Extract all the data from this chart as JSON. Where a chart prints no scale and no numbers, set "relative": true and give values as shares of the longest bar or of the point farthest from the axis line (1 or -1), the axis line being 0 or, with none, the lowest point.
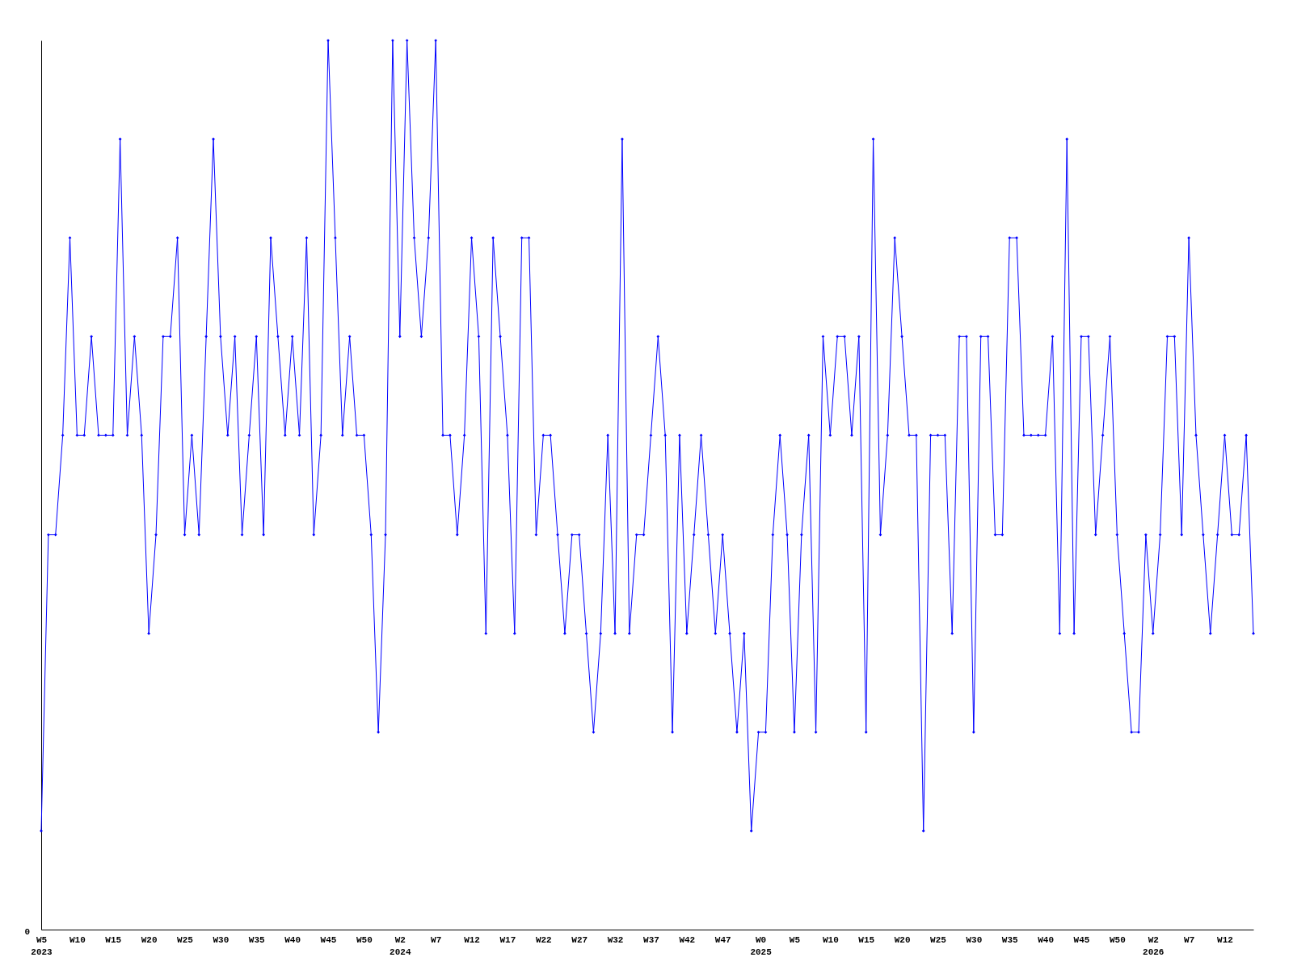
{
  "chart_data": {
    "type": "line",
    "relative": true,
    "marker": "diamond",
    "line_style": "solid",
    "grid": false,
    "annotations": [
      "0"
    ],
    "xlim": [
      "2023-01-30",
      "2026-04-27"
    ],
    "xticks": [
      {
        "value": "2023-01-30",
        "label": "W5\n2023"
      },
      {
        "value": "2023-03-06",
        "label": "W10"
      },
      {
        "value": "2023-04-10",
        "label": "W15"
      },
      {
        "value": "2023-05-15",
        "label": "W20"
      },
      {
        "value": "2023-06-19",
        "label": "W25"
      },
      {
        "value": "2023-07-24",
        "label": "W30"
      },
      {
        "value": "2023-08-28",
        "label": "W35"
      },
      {
        "value": "2023-10-02",
        "label": "W40"
      },
      {
        "value": "2023-11-06",
        "label": "W45"
      },
      {
        "value": "2023-12-11",
        "label": "W50"
      },
      {
        "value": "2024-01-15",
        "label": "W2\n2024"
      },
      {
        "value": "2024-02-19",
        "label": "W7"
      },
      {
        "value": "2024-03-25",
        "label": "W12"
      },
      {
        "value": "2024-04-29",
        "label": "W17"
      },
      {
        "value": "2024-06-03",
        "label": "W22"
      },
      {
        "value": "2024-07-08",
        "label": "W27"
      },
      {
        "value": "2024-08-12",
        "label": "W32"
      },
      {
        "value": "2024-09-16",
        "label": "W37"
      },
      {
        "value": "2024-10-21",
        "label": "W42"
      },
      {
        "value": "2024-11-25",
        "label": "W47"
      },
      {
        "value": "2025-01-01",
        "label": "W0\n2025"
      },
      {
        "value": "2025-02-03",
        "label": "W5"
      },
      {
        "value": "2025-03-10",
        "label": "W10"
      },
      {
        "value": "2025-04-14",
        "label": "W15"
      },
      {
        "value": "2025-05-19",
        "label": "W20"
      },
      {
        "value": "2025-06-23",
        "label": "W25"
      },
      {
        "value": "2025-07-28",
        "label": "W30"
      },
      {
        "value": "2025-09-01",
        "label": "W35"
      },
      {
        "value": "2025-10-06",
        "label": "W40"
      },
      {
        "value": "2025-11-10",
        "label": "W45"
      },
      {
        "value": "2025-12-15",
        "label": "W50"
      },
      {
        "value": "2026-01-19",
        "label": "W2\n2026"
      },
      {
        "value": "2026-02-23",
        "label": "W7"
      },
      {
        "value": "2026-03-30",
        "label": "W12"
      }
    ],
    "x": [
      "2023-01-30",
      "2023-02-06",
      "2023-02-13",
      "2023-02-20",
      "2023-02-27",
      "2023-03-06",
      "2023-03-13",
      "2023-03-20",
      "2023-03-27",
      "2023-04-03",
      "2023-04-10",
      "2023-04-17",
      "2023-04-24",
      "2023-05-01",
      "2023-05-08",
      "2023-05-15",
      "2023-05-22",
      "2023-05-29",
      "2023-06-05",
      "2023-06-12",
      "2023-06-19",
      "2023-06-26",
      "2023-07-03",
      "2023-07-10",
      "2023-07-17",
      "2023-07-24",
      "2023-07-31",
      "2023-08-07",
      "2023-08-14",
      "2023-08-21",
      "2023-08-28",
      "2023-09-04",
      "2023-09-11",
      "2023-09-18",
      "2023-09-25",
      "2023-10-02",
      "2023-10-09",
      "2023-10-16",
      "2023-10-23",
      "2023-10-30",
      "2023-11-06",
      "2023-11-13",
      "2023-11-20",
      "2023-11-27",
      "2023-12-04",
      "2023-12-11",
      "2023-12-18",
      "2023-12-25",
      "2024-01-01",
      "2024-01-08",
      "2024-01-15",
      "2024-01-22",
      "2024-01-29",
      "2024-02-05",
      "2024-02-12",
      "2024-02-19",
      "2024-02-26",
      "2024-03-04",
      "2024-03-11",
      "2024-03-18",
      "2024-03-25",
      "2024-04-01",
      "2024-04-08",
      "2024-04-15",
      "2024-04-22",
      "2024-04-29",
      "2024-05-06",
      "2024-05-13",
      "2024-05-20",
      "2024-05-27",
      "2024-06-03",
      "2024-06-10",
      "2024-06-17",
      "2024-06-24",
      "2024-07-01",
      "2024-07-08",
      "2024-07-15",
      "2024-07-22",
      "2024-07-29",
      "2024-08-05",
      "2024-08-12",
      "2024-08-19",
      "2024-08-26",
      "2024-09-02",
      "2024-09-09",
      "2024-09-16",
      "2024-09-23",
      "2024-09-30",
      "2024-10-07",
      "2024-10-14",
      "2024-10-21",
      "2024-10-28",
      "2024-11-04",
      "2024-11-11",
      "2024-11-18",
      "2024-11-25",
      "2024-12-02",
      "2024-12-09",
      "2024-12-16",
      "2024-12-23",
      "2024-12-30",
      "2025-01-06",
      "2025-01-13",
      "2025-01-20",
      "2025-01-27",
      "2025-02-03",
      "2025-02-10",
      "2025-02-17",
      "2025-02-24",
      "2025-03-03",
      "2025-03-10",
      "2025-03-17",
      "2025-03-24",
      "2025-03-31",
      "2025-04-07",
      "2025-04-14",
      "2025-04-21",
      "2025-04-28",
      "2025-05-05",
      "2025-05-12",
      "2025-05-19",
      "2025-05-26",
      "2025-06-02",
      "2025-06-09",
      "2025-06-16",
      "2025-06-23",
      "2025-06-30",
      "2025-07-07",
      "2025-07-14",
      "2025-07-21",
      "2025-07-28",
      "2025-08-04",
      "2025-08-11",
      "2025-08-18",
      "2025-08-25",
      "2025-09-01",
      "2025-09-08",
      "2025-09-15",
      "2025-09-22",
      "2025-09-29",
      "2025-10-06",
      "2025-10-13",
      "2025-10-20",
      "2025-10-27",
      "2025-11-03",
      "2025-11-10",
      "2025-11-17",
      "2025-11-24",
      "2025-12-01",
      "2025-12-08",
      "2025-12-15",
      "2025-12-22",
      "2025-12-29",
      "2026-01-05",
      "2026-01-12",
      "2026-01-19",
      "2026-01-26",
      "2026-02-02",
      "2026-02-09",
      "2026-02-16",
      "2026-02-23",
      "2026-03-02",
      "2026-03-09",
      "2026-03-16",
      "2026-03-23",
      "2026-03-30",
      "2026-04-06",
      "2026-04-13",
      "2026-04-20",
      "2026-04-27"
    ],
    "series": [
      {
        "color": "#0000ff",
        "values": [
          0.111,
          0.444,
          0.444,
          0.556,
          0.778,
          0.556,
          0.556,
          0.667,
          0.556,
          0.556,
          0.556,
          0.889,
          0.556,
          0.667,
          0.556,
          0.333,
          0.444,
          0.667,
          0.667,
          0.778,
          0.444,
          0.556,
          0.444,
          0.667,
          0.889,
          0.667,
          0.556,
          0.667,
          0.444,
          0.556,
          0.667,
          0.444,
          0.778,
          0.667,
          0.556,
          0.667,
          0.556,
          0.778,
          0.444,
          0.556,
          1,
          0.778,
          0.556,
          0.667,
          0.556,
          0.556,
          0.444,
          0.222,
          0.444,
          1,
          0.667,
          1,
          0.778,
          0.667,
          0.778,
          1,
          0.556,
          0.556,
          0.444,
          0.556,
          0.778,
          0.667,
          0.333,
          0.778,
          0.667,
          0.556,
          0.333,
          0.778,
          0.778,
          0.444,
          0.556,
          0.556,
          0.444,
          0.333,
          0.444,
          0.444,
          0.333,
          0.222,
          0.333,
          0.556,
          0.333,
          0.889,
          0.333,
          0.444,
          0.444,
          0.556,
          0.667,
          0.556,
          0.222,
          0.556,
          0.333,
          0.444,
          0.556,
          0.444,
          0.333,
          0.444,
          0.333,
          0.222,
          0.333,
          0.111,
          0.222,
          0.222,
          0.444,
          0.556,
          0.444,
          0.222,
          0.444,
          0.556,
          0.222,
          0.667,
          0.556,
          0.667,
          0.667,
          0.556,
          0.667,
          0.222,
          0.889,
          0.444,
          0.556,
          0.778,
          0.667,
          0.556,
          0.556,
          0.111,
          0.556,
          0.556,
          0.556,
          0.333,
          0.667,
          0.667,
          0.222,
          0.667,
          0.667,
          0.444,
          0.444,
          0.778,
          0.778,
          0.556,
          0.556,
          0.556,
          0.556,
          0.667,
          0.333,
          0.889,
          0.333,
          0.667,
          0.667,
          0.444,
          0.556,
          0.667,
          0.444,
          0.333,
          0.222,
          0.222,
          0.444,
          0.333,
          0.444,
          0.667,
          0.667,
          0.444,
          0.778,
          0.556,
          0.444,
          0.333,
          0.444,
          0.556,
          0.444,
          0.444,
          0.556,
          0.333
        ]
      }
    ]
  }
}
